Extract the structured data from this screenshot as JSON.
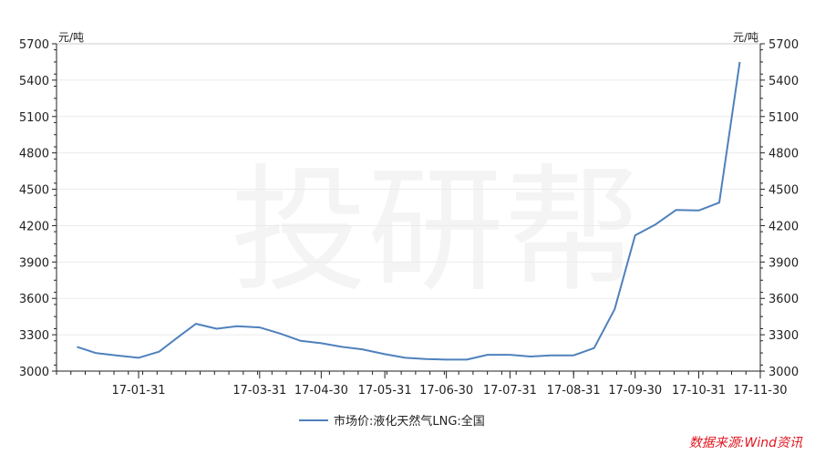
{
  "watermark": "投研帮",
  "source": "数据来源:Wind资讯",
  "chart_data": {
    "type": "line",
    "yunit_left": "元/吨",
    "yunit_right": "元/吨",
    "ylim": [
      3000,
      5700
    ],
    "yticks": [
      3000,
      3300,
      3600,
      3900,
      4200,
      4500,
      4800,
      5100,
      5400,
      5700
    ],
    "xticks": [
      "17-01-31",
      "17-03-31",
      "17-04-30",
      "17-05-31",
      "17-06-30",
      "17-07-31",
      "17-08-31",
      "17-09-30",
      "17-10-31",
      "17-11-30"
    ],
    "legend_position": "bottom",
    "line_color": "#4f81bd",
    "series": [
      {
        "name": "市场价:液化天然气LNG:全国",
        "values": [
          [
            "2017-01-01",
            3200
          ],
          [
            "2017-01-10",
            3150
          ],
          [
            "2017-01-20",
            3130
          ],
          [
            "2017-01-31",
            3110
          ],
          [
            "2017-02-10",
            3160
          ],
          [
            "2017-02-20",
            3290
          ],
          [
            "2017-02-28",
            3390
          ],
          [
            "2017-03-10",
            3350
          ],
          [
            "2017-03-20",
            3370
          ],
          [
            "2017-03-31",
            3360
          ],
          [
            "2017-04-10",
            3310
          ],
          [
            "2017-04-20",
            3250
          ],
          [
            "2017-04-30",
            3230
          ],
          [
            "2017-05-10",
            3200
          ],
          [
            "2017-05-20",
            3180
          ],
          [
            "2017-05-31",
            3140
          ],
          [
            "2017-06-10",
            3110
          ],
          [
            "2017-06-20",
            3100
          ],
          [
            "2017-06-30",
            3095
          ],
          [
            "2017-07-10",
            3095
          ],
          [
            "2017-07-20",
            3135
          ],
          [
            "2017-07-31",
            3135
          ],
          [
            "2017-08-10",
            3120
          ],
          [
            "2017-08-20",
            3130
          ],
          [
            "2017-08-31",
            3130
          ],
          [
            "2017-09-10",
            3190
          ],
          [
            "2017-09-20",
            3510
          ],
          [
            "2017-09-30",
            4120
          ],
          [
            "2017-10-10",
            4210
          ],
          [
            "2017-10-20",
            4330
          ],
          [
            "2017-10-31",
            4325
          ],
          [
            "2017-11-10",
            4390
          ],
          [
            "2017-11-20",
            5550
          ]
        ]
      }
    ]
  }
}
